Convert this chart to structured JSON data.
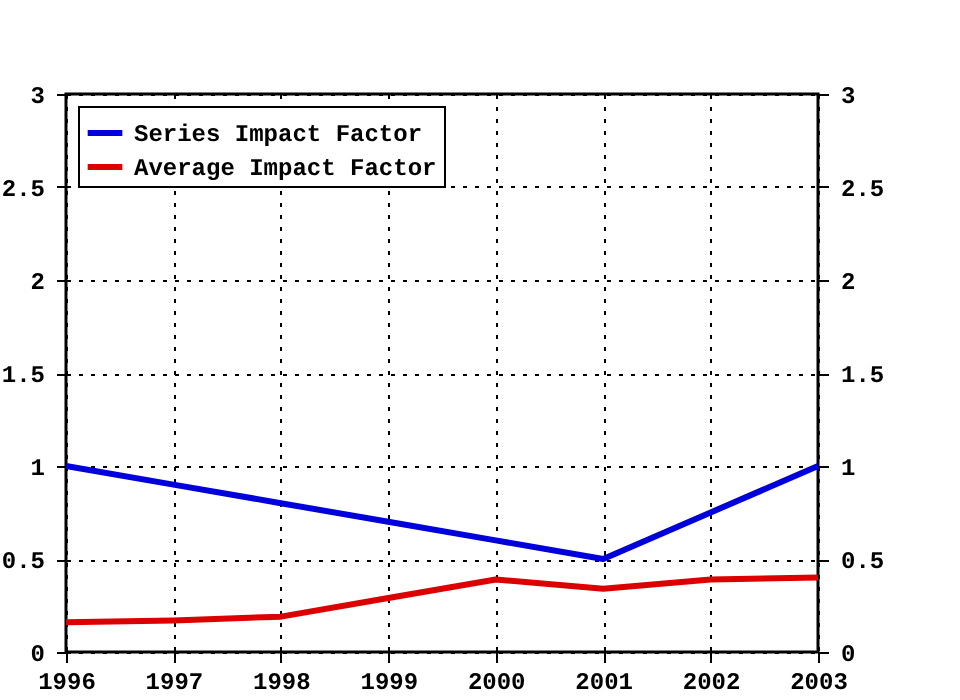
{
  "chart_data": {
    "type": "line",
    "x": [
      1996,
      1997,
      1998,
      1999,
      2000,
      2001,
      2002,
      2003
    ],
    "series": [
      {
        "name": "Series Impact Factor",
        "color": "#0000dd",
        "values": [
          1,
          0.9,
          0.8,
          0.7,
          0.6,
          0.5,
          0.75,
          1
        ]
      },
      {
        "name": "Average Impact Factor",
        "color": "#dd0000",
        "values": [
          0.16,
          0.17,
          0.19,
          0.29,
          0.39,
          0.34,
          0.39,
          0.4
        ]
      }
    ],
    "xlim": [
      1996,
      2003
    ],
    "xticks": [
      1996,
      1997,
      1998,
      1999,
      2000,
      2001,
      2002,
      2003
    ],
    "ylim": [
      0,
      3
    ],
    "yticks": [
      0,
      0.5,
      1,
      1.5,
      2,
      2.5,
      3
    ],
    "y2lim": [
      0,
      3
    ],
    "y2ticks": [
      0,
      0.5,
      1,
      1.5,
      2,
      2.5,
      3
    ],
    "grid": true,
    "legend": "top left",
    "marker": "none",
    "line_style": "solid"
  }
}
